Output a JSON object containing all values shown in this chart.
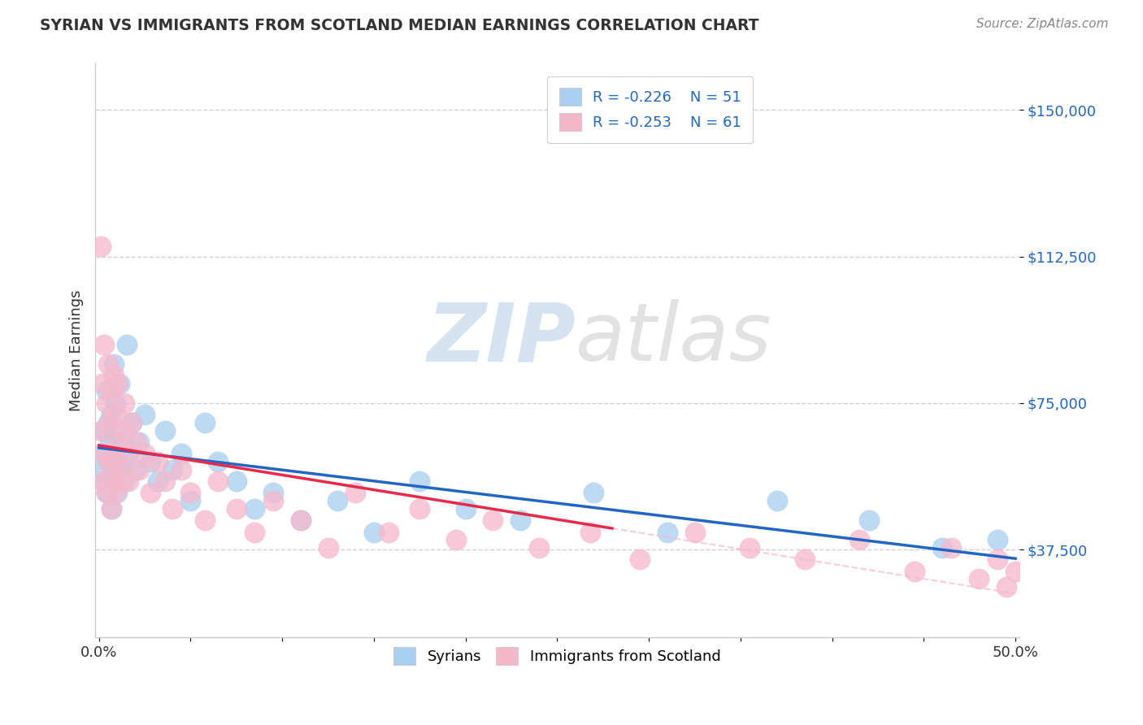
{
  "title": "SYRIAN VS IMMIGRANTS FROM SCOTLAND MEDIAN EARNINGS CORRELATION CHART",
  "source": "Source: ZipAtlas.com",
  "ylabel": "Median Earnings",
  "xlim": [
    -0.002,
    0.502
  ],
  "ylim": [
    15000,
    162000
  ],
  "yticks": [
    37500,
    75000,
    112500,
    150000
  ],
  "ytick_labels": [
    "$37,500",
    "$75,000",
    "$112,500",
    "$150,000"
  ],
  "xtick_positions": [
    0.0,
    0.05,
    0.1,
    0.15,
    0.2,
    0.25,
    0.3,
    0.35,
    0.4,
    0.45,
    0.5
  ],
  "xtick_labels": [
    "0.0%",
    "",
    "",
    "",
    "",
    "",
    "",
    "",
    "",
    "",
    "50.0%"
  ],
  "legend_r_blue": "-0.226",
  "legend_n_blue": "51",
  "legend_r_pink": "-0.253",
  "legend_n_pink": "61",
  "blue_color": "#a8cef0",
  "pink_color": "#f5b8cb",
  "blue_line_color": "#2166c4",
  "pink_line_color": "#e8294a",
  "pink_dash_color": "#f5b8cb",
  "watermark_zip": "ZIP",
  "watermark_atlas": "atlas",
  "background_color": "#ffffff",
  "syrians_x": [
    0.001,
    0.002,
    0.003,
    0.003,
    0.004,
    0.004,
    0.005,
    0.005,
    0.006,
    0.006,
    0.007,
    0.007,
    0.008,
    0.008,
    0.009,
    0.009,
    0.01,
    0.01,
    0.011,
    0.012,
    0.013,
    0.014,
    0.015,
    0.016,
    0.018,
    0.02,
    0.022,
    0.025,
    0.028,
    0.032,
    0.036,
    0.04,
    0.045,
    0.05,
    0.058,
    0.065,
    0.075,
    0.085,
    0.095,
    0.11,
    0.13,
    0.15,
    0.175,
    0.2,
    0.23,
    0.27,
    0.31,
    0.37,
    0.42,
    0.46,
    0.49
  ],
  "syrians_y": [
    58000,
    62000,
    55000,
    68000,
    52000,
    78000,
    60000,
    70000,
    55000,
    65000,
    72000,
    48000,
    85000,
    55000,
    60000,
    75000,
    52000,
    68000,
    80000,
    58000,
    65000,
    55000,
    90000,
    62000,
    70000,
    58000,
    65000,
    72000,
    60000,
    55000,
    68000,
    58000,
    62000,
    50000,
    70000,
    60000,
    55000,
    48000,
    52000,
    45000,
    50000,
    42000,
    55000,
    48000,
    45000,
    52000,
    42000,
    50000,
    45000,
    38000,
    40000
  ],
  "scotland_x": [
    0.001,
    0.001,
    0.002,
    0.002,
    0.003,
    0.003,
    0.004,
    0.004,
    0.005,
    0.005,
    0.006,
    0.006,
    0.007,
    0.007,
    0.008,
    0.008,
    0.009,
    0.009,
    0.01,
    0.01,
    0.011,
    0.012,
    0.013,
    0.014,
    0.015,
    0.016,
    0.018,
    0.02,
    0.022,
    0.025,
    0.028,
    0.032,
    0.036,
    0.04,
    0.045,
    0.05,
    0.058,
    0.065,
    0.075,
    0.085,
    0.095,
    0.11,
    0.125,
    0.14,
    0.158,
    0.175,
    0.195,
    0.215,
    0.24,
    0.268,
    0.295,
    0.325,
    0.355,
    0.385,
    0.415,
    0.445,
    0.465,
    0.48,
    0.49,
    0.495,
    0.5
  ],
  "scotland_y": [
    115000,
    68000,
    80000,
    55000,
    90000,
    62000,
    75000,
    52000,
    85000,
    60000,
    70000,
    55000,
    78000,
    48000,
    82000,
    60000,
    72000,
    52000,
    65000,
    80000,
    58000,
    55000,
    68000,
    75000,
    62000,
    55000,
    70000,
    65000,
    58000,
    62000,
    52000,
    60000,
    55000,
    48000,
    58000,
    52000,
    45000,
    55000,
    48000,
    42000,
    50000,
    45000,
    38000,
    52000,
    42000,
    48000,
    40000,
    45000,
    38000,
    42000,
    35000,
    42000,
    38000,
    35000,
    40000,
    32000,
    38000,
    30000,
    35000,
    28000,
    32000
  ]
}
